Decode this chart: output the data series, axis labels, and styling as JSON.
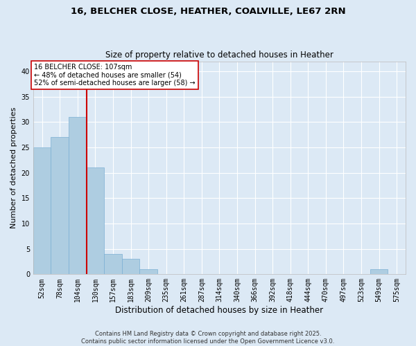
{
  "title_line1": "16, BELCHER CLOSE, HEATHER, COALVILLE, LE67 2RN",
  "title_line2": "Size of property relative to detached houses in Heather",
  "xlabel": "Distribution of detached houses by size in Heather",
  "ylabel": "Number of detached properties",
  "bins": [
    "52sqm",
    "78sqm",
    "104sqm",
    "130sqm",
    "157sqm",
    "183sqm",
    "209sqm",
    "235sqm",
    "261sqm",
    "287sqm",
    "314sqm",
    "340sqm",
    "366sqm",
    "392sqm",
    "418sqm",
    "444sqm",
    "470sqm",
    "497sqm",
    "523sqm",
    "549sqm",
    "575sqm"
  ],
  "bar_values": [
    25,
    27,
    31,
    21,
    4,
    3,
    1,
    0,
    0,
    0,
    0,
    0,
    0,
    0,
    0,
    0,
    0,
    0,
    0,
    1,
    0
  ],
  "bar_color": "#aecde1",
  "bar_edge_color": "#7bafd4",
  "background_color": "#dce9f5",
  "grid_color": "#ffffff",
  "vline_x_index": 2.5,
  "vline_color": "#cc0000",
  "annotation_text": "16 BELCHER CLOSE: 107sqm\n← 48% of detached houses are smaller (54)\n52% of semi-detached houses are larger (58) →",
  "annotation_box_color": "#ffffff",
  "annotation_box_edge": "#cc0000",
  "ylim": [
    0,
    42
  ],
  "yticks": [
    0,
    5,
    10,
    15,
    20,
    25,
    30,
    35,
    40
  ],
  "footer": "Contains HM Land Registry data © Crown copyright and database right 2025.\nContains public sector information licensed under the Open Government Licence v3.0."
}
